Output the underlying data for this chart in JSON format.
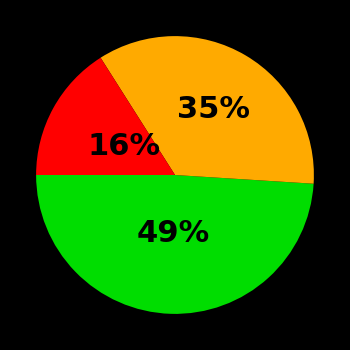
{
  "slices": [
    49,
    35,
    16
  ],
  "colors": [
    "#00dd00",
    "#ffaa00",
    "#ff0000"
  ],
  "labels": [
    "49%",
    "35%",
    "16%"
  ],
  "background_color": "#000000",
  "text_color": "#000000",
  "startangle": 180,
  "label_fontsize": 22,
  "label_fontweight": "bold",
  "label_radii": [
    0.42,
    0.55,
    0.42
  ]
}
